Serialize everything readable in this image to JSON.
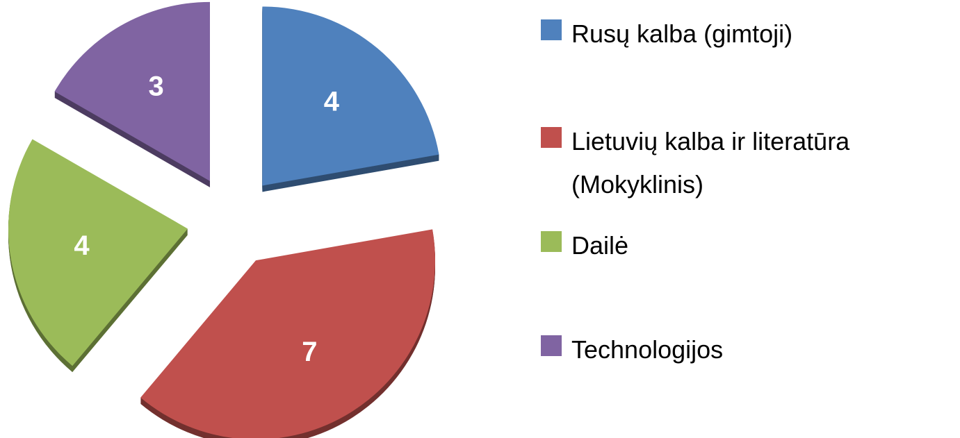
{
  "chart_data": {
    "type": "pie",
    "categories": [
      "Rusų kalba (gimtoji)",
      "Lietuvių kalba ir literatūra (Mokyklinis)",
      "Dailė",
      "Technologijos"
    ],
    "values": [
      4,
      7,
      4,
      3
    ],
    "colors": [
      "#4f81bd",
      "#c0504d",
      "#9bbb59",
      "#8064a2"
    ],
    "legend": "right"
  }
}
